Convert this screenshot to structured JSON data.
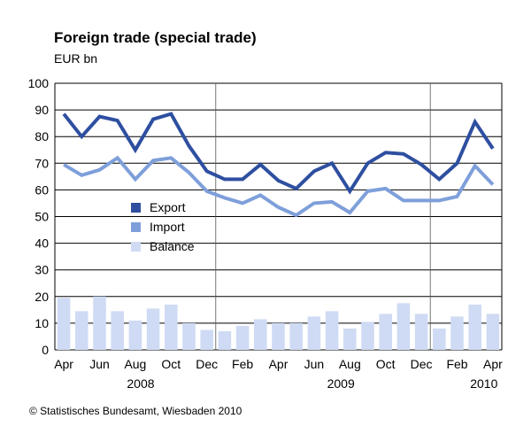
{
  "chart_data": {
    "type": "line",
    "title": "Foreign trade (special trade)",
    "subtitle": "EUR bn",
    "source": "© Statistisches Bundesamt, Wiesbaden 2010",
    "x_labels": [
      "Apr",
      "Jun",
      "Aug",
      "Oct",
      "Dec",
      "Feb",
      "Apr",
      "Jun",
      "Aug",
      "Oct",
      "Dec",
      "Feb",
      "Apr"
    ],
    "year_labels": [
      "2008",
      "2009",
      "2010"
    ],
    "ylim": [
      0,
      100
    ],
    "yticks": [
      0,
      10,
      20,
      30,
      40,
      50,
      60,
      70,
      80,
      90,
      100
    ],
    "legend_position": "center-left",
    "series": [
      {
        "name": "Export",
        "type": "line",
        "color": "#2e4fa0",
        "values": [
          88.5,
          80,
          87.5,
          86,
          75,
          86.5,
          88.5,
          76.5,
          67,
          64,
          64,
          69.5,
          63.5,
          60.5,
          67,
          70,
          59.5,
          70,
          74,
          73.5,
          69.5,
          64,
          70,
          85.5,
          75.5
        ]
      },
      {
        "name": "Import",
        "type": "line",
        "color": "#7e9fda",
        "values": [
          69.5,
          65.5,
          67.5,
          72,
          64,
          71,
          72,
          66.5,
          59.5,
          57,
          55,
          58,
          53.5,
          50.5,
          55,
          55.5,
          51.5,
          59.5,
          60.5,
          56,
          56,
          56,
          57.5,
          69,
          62
        ]
      },
      {
        "name": "Balance",
        "type": "bar",
        "color": "#cfdbf4",
        "values": [
          19.5,
          14.5,
          20,
          14.5,
          11,
          15.5,
          17,
          10,
          7.5,
          7,
          9,
          11.5,
          10,
          10,
          12.5,
          14.5,
          8,
          10.5,
          13.5,
          17.5,
          13.5,
          8,
          12.5,
          17,
          13.5
        ]
      }
    ]
  }
}
